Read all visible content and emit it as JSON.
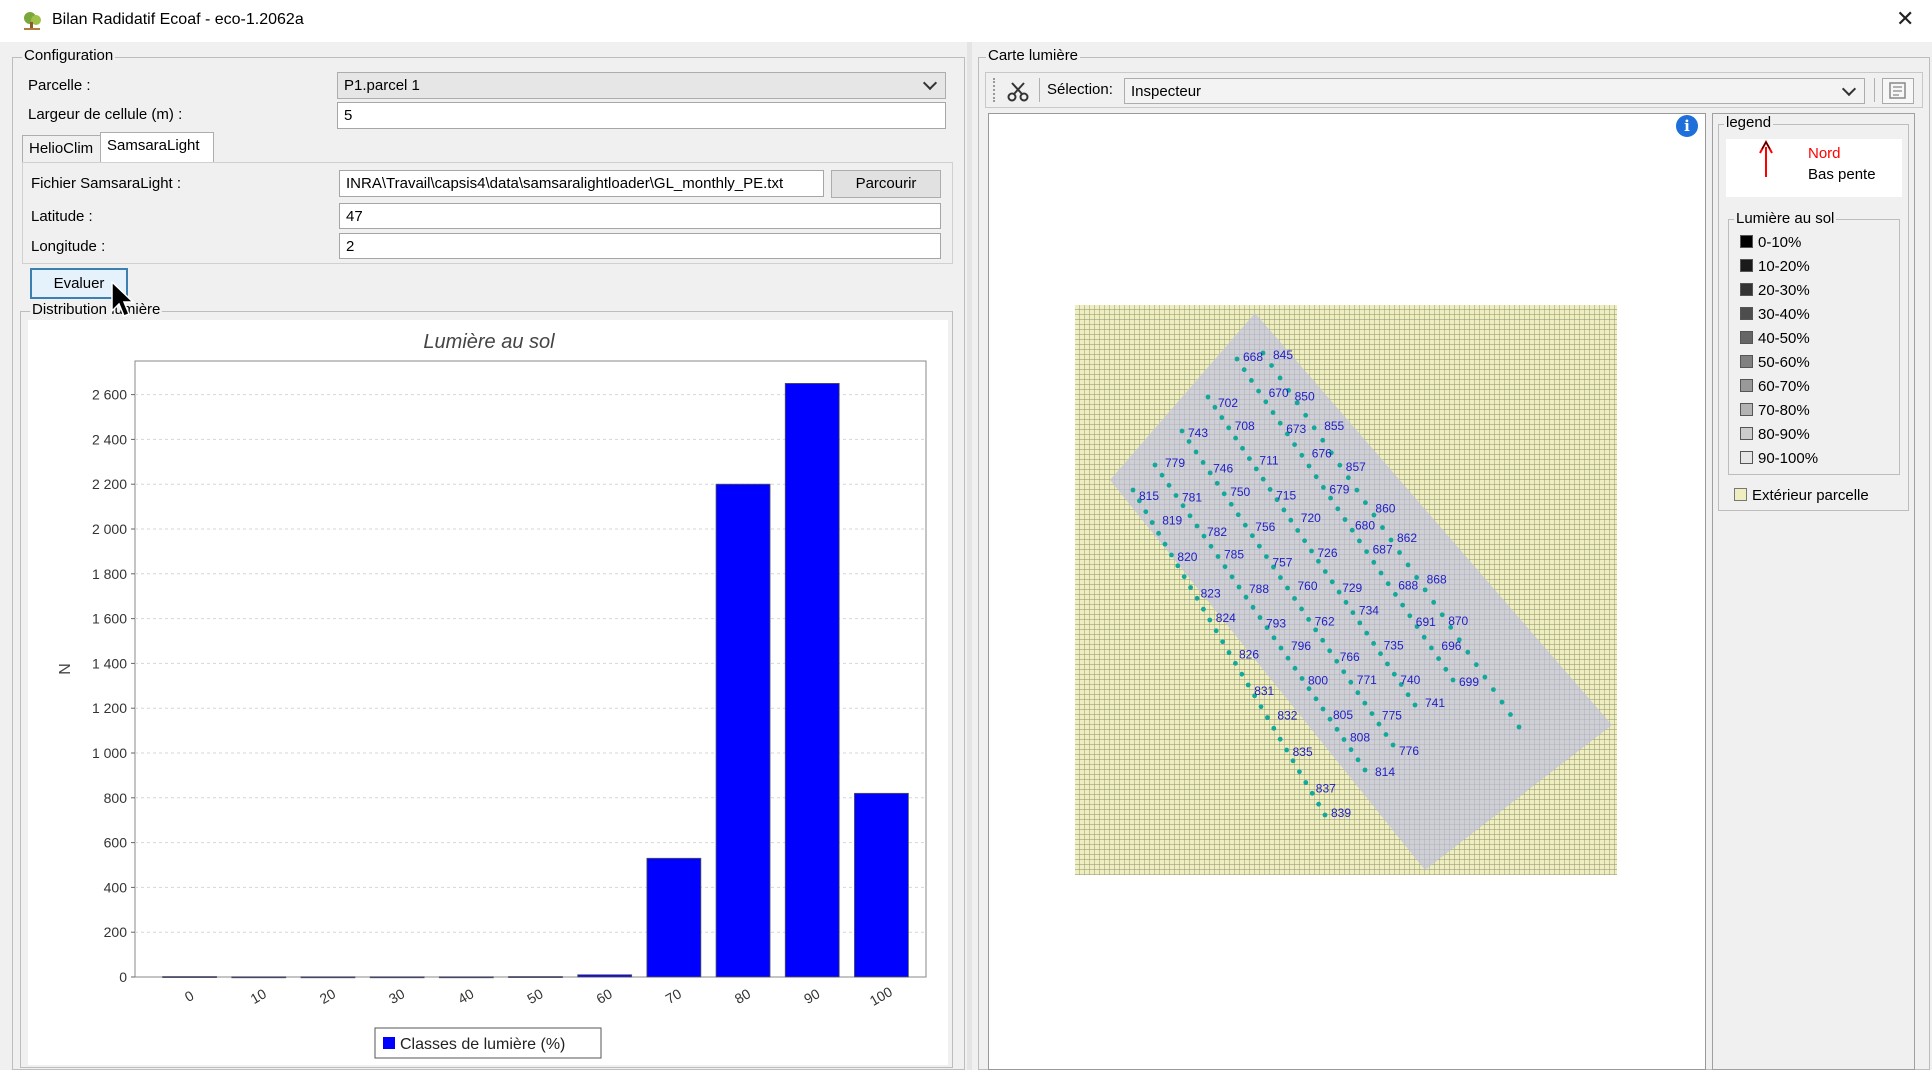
{
  "window": {
    "title": "Bilan Radidatif Ecoaf - eco-1.2062a"
  },
  "configuration": {
    "group_title": "Configuration",
    "parcelle_label": "Parcelle :",
    "parcelle_value": "P1.parcel 1",
    "cell_width_label": "Largeur de cellule (m) :",
    "cell_width_value": "5",
    "tabs": [
      "HelioClim",
      "SamsaraLight"
    ],
    "file_label": "Fichier SamsaraLight :",
    "file_value": "INRA\\Travail\\capsis4\\data\\samsaralightloader\\GL_monthly_PE.txt",
    "browse_button": "Parcourir",
    "latitude_label": "Latitude :",
    "latitude_value": "47",
    "longitude_label": "Longitude :",
    "longitude_value": "2",
    "evaluate_button": "Evaluer"
  },
  "distribution": {
    "group_title": "Distribution lumière"
  },
  "chart_data": {
    "type": "bar",
    "title": "Lumière au sol",
    "xlabel": "",
    "ylabel": "N",
    "categories": [
      "0",
      "10",
      "20",
      "30",
      "40",
      "50",
      "60",
      "70",
      "80",
      "90",
      "100"
    ],
    "series": [
      {
        "name": "Classes de lumière (%)",
        "values": [
          2,
          1,
          1,
          1,
          1,
          2,
          10,
          530,
          2200,
          2650,
          820
        ]
      }
    ],
    "ylim": [
      0,
      2750
    ],
    "yticks": [
      0,
      200,
      400,
      600,
      800,
      1000,
      1200,
      1400,
      1600,
      1800,
      2000,
      2200,
      2400,
      2600
    ],
    "ytick_labels": [
      "0",
      "200",
      "400",
      "600",
      "800",
      "1 000",
      "1 200",
      "1 400",
      "1 600",
      "1 800",
      "2 000",
      "2 200",
      "2 400",
      "2 600"
    ],
    "grid": true,
    "legend_position": "bottom",
    "bar_color": "#0000ff"
  },
  "map_panel": {
    "group_title": "Carte lumière",
    "tool_icon": "scissors-tool-icon",
    "selection_label": "Sélection:",
    "selection_value": "Inspecteur",
    "info_icon": "info-icon",
    "tree_labels": [
      "668",
      "670",
      "673",
      "676",
      "679",
      "680",
      "687",
      "688",
      "691",
      "696",
      "699",
      "702",
      "708",
      "711",
      "715",
      "720",
      "726",
      "729",
      "734",
      "735",
      "740",
      "741",
      "743",
      "746",
      "750",
      "756",
      "757",
      "760",
      "762",
      "766",
      "771",
      "775",
      "776",
      "779",
      "781",
      "782",
      "785",
      "788",
      "793",
      "796",
      "800",
      "805",
      "808",
      "814",
      "815",
      "819",
      "820",
      "823",
      "824",
      "826",
      "831",
      "832",
      "835",
      "837",
      "839",
      "845",
      "850",
      "855",
      "857",
      "860",
      "862",
      "868",
      "870"
    ]
  },
  "legend_panel": {
    "title": "legend",
    "north_label": "Nord",
    "slope_label": "Bas pente",
    "north_color": "#ff0000",
    "light_title": "Lumière au sol",
    "light_classes": [
      "0-10%",
      "10-20%",
      "20-30%",
      "30-40%",
      "40-50%",
      "50-60%",
      "60-70%",
      "70-80%",
      "80-90%",
      "90-100%"
    ],
    "light_colors": [
      "#000000",
      "#1a1a1a",
      "#333333",
      "#4d4d4d",
      "#666666",
      "#808080",
      "#999999",
      "#b3b3b3",
      "#cccccc",
      "#e6e6e6"
    ],
    "outside_label": "Extérieur parcelle",
    "outside_color": "#eeeec0"
  }
}
